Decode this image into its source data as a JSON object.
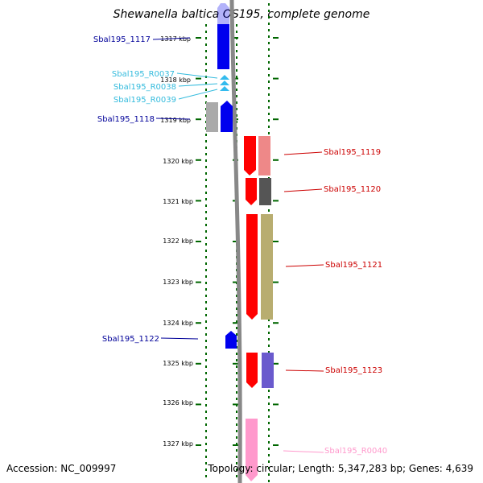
{
  "title": "Shewanella baltica OS195, complete genome",
  "footer": {
    "accession": "Accession: NC_009997",
    "topology": "Topology: circular; Length: 5,347,283 bp; Genes: 4,639"
  },
  "ticks": [
    "1317 kbp",
    "1318 kbp",
    "1319 kbp",
    "1320 kbp",
    "1321 kbp",
    "1322 kbp",
    "1323 kbp",
    "1324 kbp",
    "1325 kbp",
    "1326 kbp",
    "1327 kbp"
  ],
  "colors": {
    "strand_left": "#0000ee",
    "strand_right": "#ff0000",
    "rna": "#33bbee",
    "pseudo": "#ff99cc",
    "label_left": "#000099",
    "label_right": "#cc0000",
    "label_rna": "#33bbdd",
    "label_pseudo": "#ff99cc",
    "dots": "#006600",
    "backbone": "#888888"
  },
  "genes": [
    {
      "label": "Sbal195_1117",
      "strand": "-",
      "type": "CDS",
      "color": "#0000ee",
      "cog_color": null
    },
    {
      "label": "Sbal195_R0037",
      "strand": "-",
      "type": "tRNA",
      "color": "#33bbee",
      "cog_color": null
    },
    {
      "label": "Sbal195_R0038",
      "strand": "-",
      "type": "tRNA",
      "color": "#33bbee",
      "cog_color": null
    },
    {
      "label": "Sbal195_R0039",
      "strand": "-",
      "type": "tRNA",
      "color": "#33bbee",
      "cog_color": null
    },
    {
      "label": "Sbal195_1118",
      "strand": "-",
      "type": "CDS",
      "color": "#0000ee",
      "cog_color": "#aaaaaa"
    },
    {
      "label": "Sbal195_1119",
      "strand": "+",
      "type": "CDS",
      "color": "#ff0000",
      "cog_color": "#ee8888"
    },
    {
      "label": "Sbal195_1120",
      "strand": "+",
      "type": "CDS",
      "color": "#ff0000",
      "cog_color": "#555555"
    },
    {
      "label": "Sbal195_1121",
      "strand": "+",
      "type": "CDS",
      "color": "#ff0000",
      "cog_color": "#b8ad70"
    },
    {
      "label": "Sbal195_1122",
      "strand": "-",
      "type": "CDS",
      "color": "#0000ee",
      "cog_color": null
    },
    {
      "label": "Sbal195_1123",
      "strand": "+",
      "type": "CDS",
      "color": "#ff0000",
      "cog_color": "#6a5acd"
    },
    {
      "label": "Sbal195_R0040",
      "strand": "+",
      "type": "pseudo",
      "color": "#ff99cc",
      "cog_color": null
    }
  ]
}
